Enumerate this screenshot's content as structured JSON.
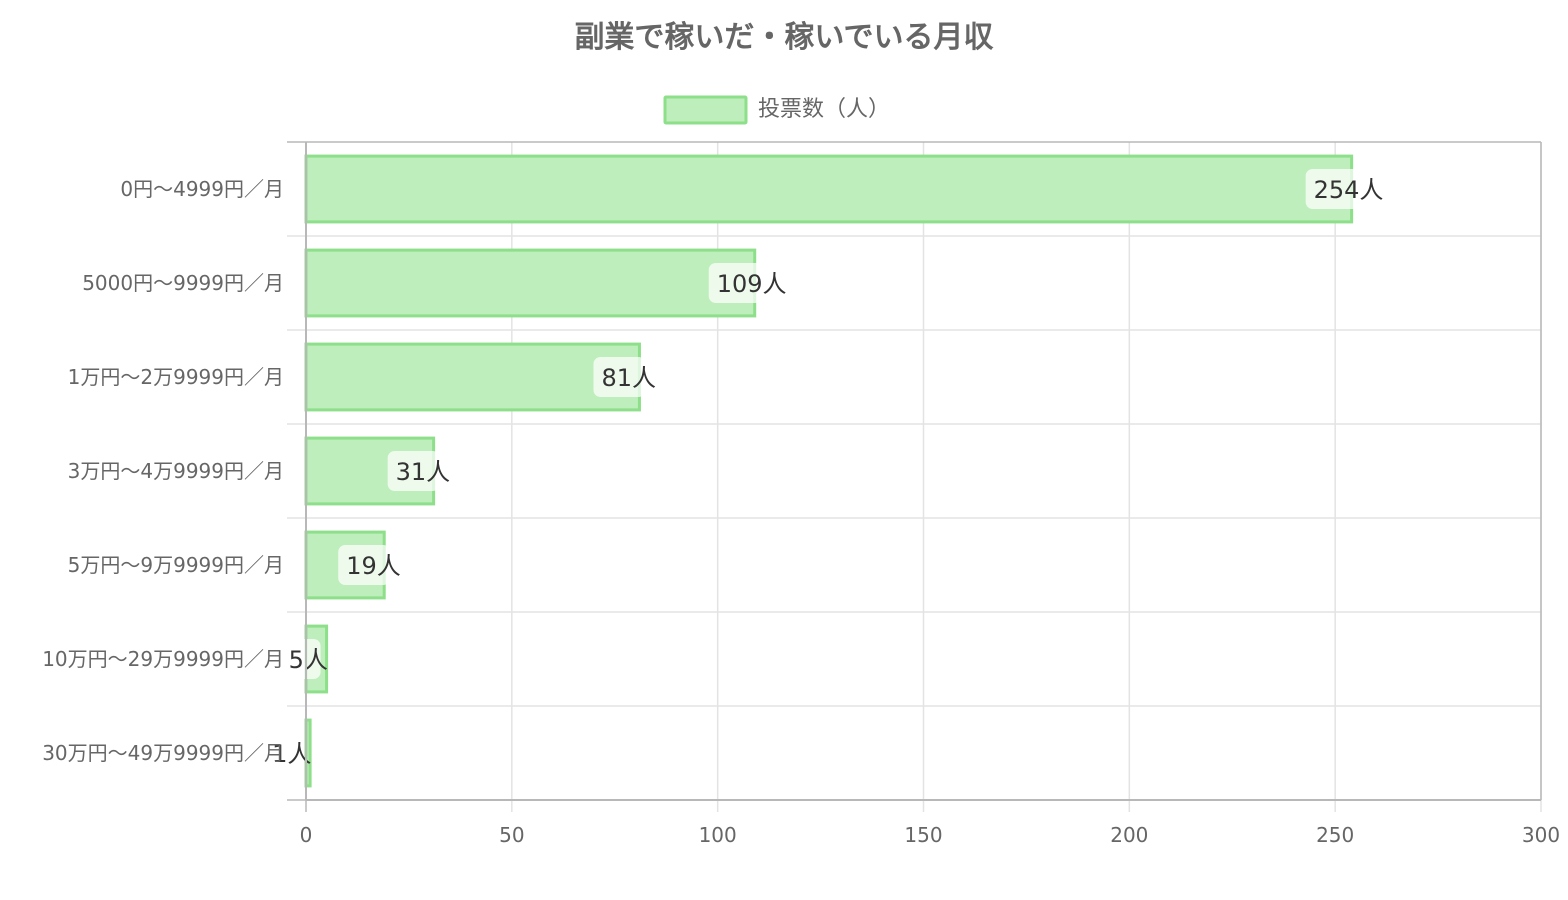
{
  "chart_data": {
    "type": "bar",
    "orientation": "horizontal",
    "title": "副業で稼いだ・稼いでいる月収",
    "legend": {
      "label": "投票数（人）",
      "position": "top"
    },
    "categories": [
      "0円〜4999円／月",
      "5000円〜9999円／月",
      "1万円〜2万9999円／月",
      "3万円〜4万9999円／月",
      "5万円〜9万9999円／月",
      "10万円〜29万9999円／月",
      "30万円〜49万9999円／月"
    ],
    "series": [
      {
        "name": "投票数（人）",
        "values": [
          254,
          109,
          81,
          31,
          19,
          5,
          1
        ]
      }
    ],
    "data_labels": [
      "254人",
      "109人",
      "81人",
      "31人",
      "19人",
      "5人",
      "1人"
    ],
    "xlim": [
      0,
      300
    ],
    "xticks": [
      0,
      50,
      100,
      150,
      200,
      250,
      300
    ],
    "xtick_labels": [
      "0",
      "50",
      "100",
      "150",
      "200",
      "250",
      "300"
    ],
    "grid": true,
    "colors": {
      "bar_fill": "#bdeebb",
      "bar_stroke": "#8ddf8a",
      "grid": "#e3e3e3",
      "axis": "#b8b8b8",
      "title": "#666666",
      "text": "#666666",
      "label": "#333333"
    }
  }
}
